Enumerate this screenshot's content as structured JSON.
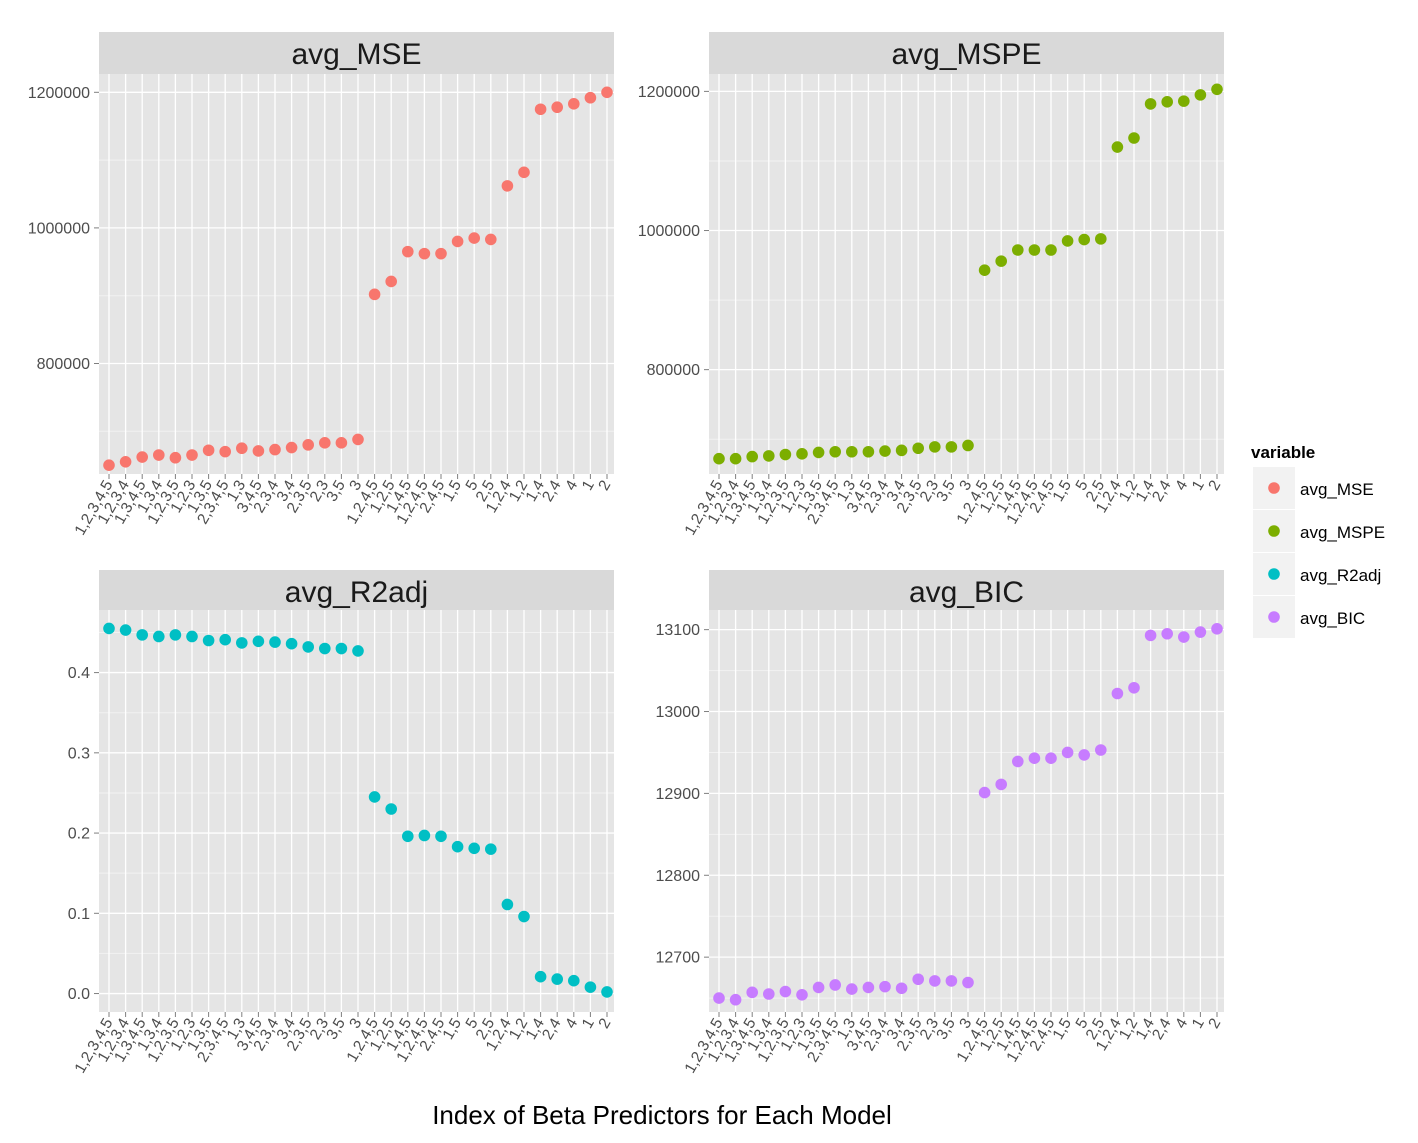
{
  "xlabel": "Index of Beta Predictors for Each Model",
  "legend": {
    "title": "variable",
    "placement": "right",
    "items": [
      {
        "label": "avg_MSE",
        "color": "#F8766D"
      },
      {
        "label": "avg_MSPE",
        "color": "#7CAE00"
      },
      {
        "label": "avg_R2adj",
        "color": "#00BFC4"
      },
      {
        "label": "avg_BIC",
        "color": "#C77CFF"
      }
    ]
  },
  "chart_data": [
    {
      "type": "scatter",
      "title": "avg_MSE",
      "color": "#F8766D",
      "categories": [
        "1,2,3,4,5",
        "1,2,3,4",
        "1,3,4,5",
        "1,3,4",
        "1,2,3,5",
        "1,2,3",
        "1,3,5",
        "2,3,4,5",
        "1,3",
        "3,4,5",
        "2,3,4",
        "3,4",
        "2,3,5",
        "2,3",
        "3,5",
        "3",
        "1,2,4,5",
        "1,2,5",
        "1,4,5",
        "1,2,4,5",
        "2,4,5",
        "1,5",
        "5",
        "2,5",
        "1,2,4",
        "1,2",
        "1,4",
        "2,4",
        "4",
        "1",
        "2"
      ],
      "values": [
        650000,
        655000,
        662000,
        665000,
        661000,
        665000,
        672000,
        670000,
        675000,
        671000,
        673000,
        676000,
        680000,
        683000,
        683000,
        688000,
        902000,
        921000,
        965000,
        962000,
        962000,
        980000,
        985000,
        983000,
        1062000,
        1082000,
        1175000,
        1178000,
        1183000,
        1192000,
        1200000
      ],
      "yticks": [
        800000,
        1000000,
        1200000
      ],
      "ytick_labels": [
        "800000",
        "1000000",
        "1200000"
      ],
      "ylim": [
        637000,
        1227000
      ],
      "grid": true
    },
    {
      "type": "scatter",
      "title": "avg_MSPE",
      "color": "#7CAE00",
      "categories": [
        "1,2,3,4,5",
        "1,2,3,4",
        "1,3,4,5",
        "1,3,4",
        "1,2,3,5",
        "1,2,3",
        "1,3,5",
        "2,3,4,5",
        "1,3",
        "3,4,5",
        "2,3,4",
        "3,4",
        "2,3,5",
        "2,3",
        "3,5",
        "3",
        "1,2,4,5",
        "1,2,5",
        "1,4,5",
        "1,2,4,5",
        "2,4,5",
        "1,5",
        "5",
        "2,5",
        "1,2,4",
        "1,2",
        "1,4",
        "2,4",
        "4",
        "1",
        "2"
      ],
      "values": [
        672000,
        672000,
        675000,
        676000,
        678000,
        679000,
        681000,
        682000,
        682000,
        682000,
        683000,
        684000,
        687000,
        689000,
        689000,
        691000,
        943000,
        956000,
        972000,
        972000,
        972000,
        985000,
        987000,
        988000,
        1120000,
        1133000,
        1182000,
        1185000,
        1186000,
        1195000,
        1203000
      ],
      "yticks": [
        800000,
        1000000,
        1200000
      ],
      "ytick_labels": [
        "800000",
        "1000000",
        "1200000"
      ],
      "ylim": [
        650000,
        1225000
      ],
      "grid": true
    },
    {
      "type": "scatter",
      "title": "avg_R2adj",
      "color": "#00BFC4",
      "categories": [
        "1,2,3,4,5",
        "1,2,3,4",
        "1,3,4,5",
        "1,3,4",
        "1,2,3,5",
        "1,2,3",
        "1,3,5",
        "2,3,4,5",
        "1,3",
        "3,4,5",
        "2,3,4",
        "3,4",
        "2,3,5",
        "2,3",
        "3,5",
        "3",
        "1,2,4,5",
        "1,2,5",
        "1,4,5",
        "1,2,4,5",
        "2,4,5",
        "1,5",
        "5",
        "2,5",
        "1,2,4",
        "1,2",
        "1,4",
        "2,4",
        "4",
        "1",
        "2"
      ],
      "values": [
        0.455,
        0.453,
        0.447,
        0.445,
        0.447,
        0.445,
        0.44,
        0.441,
        0.437,
        0.439,
        0.438,
        0.436,
        0.432,
        0.43,
        0.43,
        0.427,
        0.245,
        0.23,
        0.196,
        0.197,
        0.196,
        0.183,
        0.181,
        0.18,
        0.111,
        0.096,
        0.021,
        0.018,
        0.016,
        0.008,
        0.002
      ],
      "yticks": [
        0.0,
        0.1,
        0.2,
        0.3,
        0.4
      ],
      "ytick_labels": [
        "0.0",
        "0.1",
        "0.2",
        "0.3",
        "0.4"
      ],
      "ylim": [
        -0.023,
        0.478
      ],
      "grid": true
    },
    {
      "type": "scatter",
      "title": "avg_BIC",
      "color": "#C77CFF",
      "categories": [
        "1,2,3,4,5",
        "1,2,3,4",
        "1,3,4,5",
        "1,3,4",
        "1,2,3,5",
        "1,2,3",
        "1,3,5",
        "2,3,4,5",
        "1,3",
        "3,4,5",
        "2,3,4",
        "3,4",
        "2,3,5",
        "2,3",
        "3,5",
        "3",
        "1,2,4,5",
        "1,2,5",
        "1,4,5",
        "1,2,4,5",
        "2,4,5",
        "1,5",
        "5",
        "2,5",
        "1,2,4",
        "1,2",
        "1,4",
        "2,4",
        "4",
        "1",
        "2"
      ],
      "values": [
        12650,
        12648,
        12657,
        12655,
        12658,
        12654,
        12663,
        12666,
        12661,
        12663,
        12664,
        12662,
        12673,
        12671,
        12671,
        12669,
        12901,
        12911,
        12939,
        12943,
        12943,
        12950,
        12947,
        12953,
        13022,
        13029,
        13093,
        13095,
        13091,
        13097,
        13101
      ],
      "yticks": [
        12700,
        12800,
        12900,
        13000,
        13100
      ],
      "ytick_labels": [
        "12700",
        "12800",
        "12900",
        "13000",
        "13100"
      ],
      "ylim": [
        12633,
        13124
      ],
      "grid": true
    }
  ]
}
